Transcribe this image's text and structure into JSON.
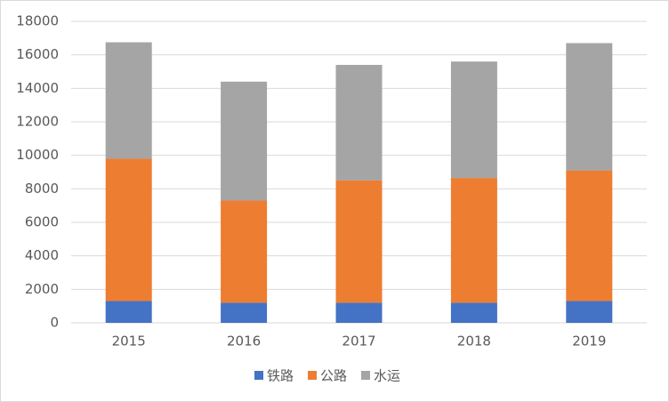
{
  "chart_data": {
    "type": "stacked_bar",
    "categories": [
      "2015",
      "2016",
      "2017",
      "2018",
      "2019"
    ],
    "series": [
      {
        "name": "铁路",
        "color": "#4472c4",
        "values": [
          1300,
          1200,
          1200,
          1200,
          1300
        ]
      },
      {
        "name": "公路",
        "color": "#ed7d31",
        "values": [
          8500,
          6100,
          7300,
          7450,
          7800
        ]
      },
      {
        "name": "水运",
        "color": "#a5a5a5",
        "values": [
          6950,
          7100,
          6900,
          6950,
          7600
        ]
      }
    ],
    "ylim": [
      0,
      18000
    ],
    "yticks": [
      0,
      2000,
      4000,
      6000,
      8000,
      10000,
      12000,
      14000,
      16000,
      18000
    ],
    "grid": true,
    "legend": "bottom"
  }
}
